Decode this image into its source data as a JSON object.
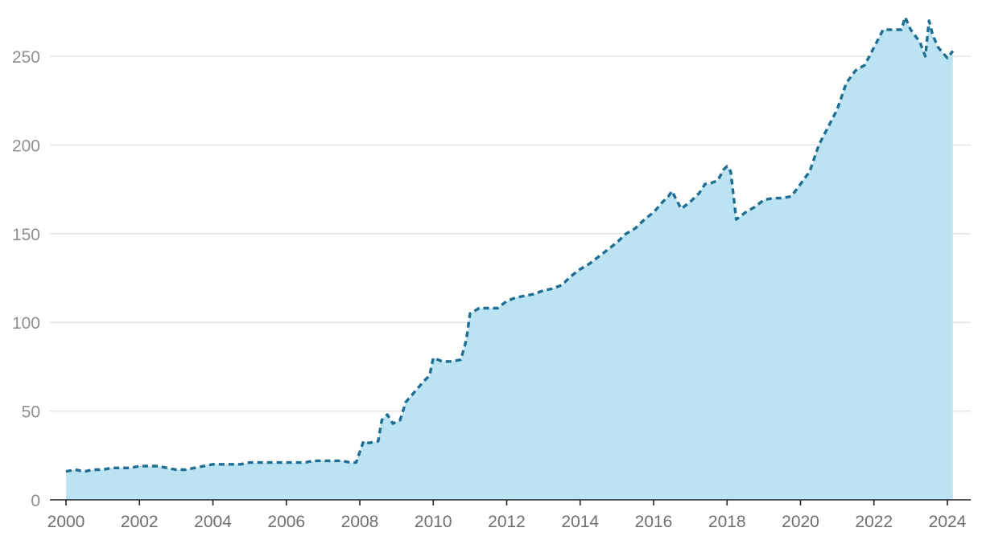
{
  "chart_data": {
    "type": "area",
    "title": "",
    "xlabel": "",
    "ylabel": "",
    "xlim": [
      2000,
      2024.3
    ],
    "ylim": [
      0,
      270
    ],
    "grid": true,
    "legend": "none",
    "colors": {
      "fill": "#bce3f1",
      "line": "#1e6d92"
    },
    "x_ticks": [
      {
        "value": 2000,
        "label": "2000"
      },
      {
        "value": 2002,
        "label": "2002"
      },
      {
        "value": 2004,
        "label": "2004"
      },
      {
        "value": 2006,
        "label": "2006"
      },
      {
        "value": 2008,
        "label": "2008"
      },
      {
        "value": 2010,
        "label": "2010"
      },
      {
        "value": 2012,
        "label": "2012"
      },
      {
        "value": 2014,
        "label": "2014"
      },
      {
        "value": 2016,
        "label": "2016"
      },
      {
        "value": 2018,
        "label": "2018"
      },
      {
        "value": 2020,
        "label": "2020"
      },
      {
        "value": 2022,
        "label": "2022"
      },
      {
        "value": 2024,
        "label": "2024"
      }
    ],
    "y_ticks": [
      {
        "value": 0,
        "label": "0"
      },
      {
        "value": 50,
        "label": "50"
      },
      {
        "value": 100,
        "label": "100"
      },
      {
        "value": 150,
        "label": "150"
      },
      {
        "value": 200,
        "label": "200"
      },
      {
        "value": 250,
        "label": "250"
      }
    ],
    "series": [
      {
        "x": [
          2000.0,
          2000.25,
          2000.5,
          2000.75,
          2001.0,
          2001.25,
          2001.5,
          2001.75,
          2002.0,
          2002.25,
          2002.5,
          2002.75,
          2003.0,
          2003.25,
          2003.5,
          2003.75,
          2004.0,
          2004.25,
          2004.5,
          2004.75,
          2005.0,
          2005.25,
          2005.5,
          2005.75,
          2006.0,
          2006.25,
          2006.5,
          2006.75,
          2007.0,
          2007.25,
          2007.5,
          2007.75,
          2007.9,
          2008.1,
          2008.25,
          2008.5,
          2008.6,
          2008.75,
          2008.9,
          2009.1,
          2009.25,
          2009.5,
          2009.75,
          2009.9,
          2010.0,
          2010.25,
          2010.5,
          2010.75,
          2010.9,
          2011.0,
          2011.25,
          2011.5,
          2011.75,
          2012.0,
          2012.25,
          2012.5,
          2012.75,
          2013.0,
          2013.25,
          2013.5,
          2013.75,
          2014.0,
          2014.25,
          2014.5,
          2014.75,
          2015.0,
          2015.25,
          2015.5,
          2015.75,
          2016.0,
          2016.25,
          2016.4,
          2016.5,
          2016.75,
          2017.0,
          2017.25,
          2017.4,
          2017.5,
          2017.75,
          2017.9,
          2018.0,
          2018.1,
          2018.25,
          2018.5,
          2018.75,
          2019.0,
          2019.25,
          2019.5,
          2019.75,
          2020.0,
          2020.25,
          2020.5,
          2020.75,
          2021.0,
          2021.25,
          2021.5,
          2021.75,
          2022.0,
          2022.25,
          2022.5,
          2022.75,
          2022.85,
          2023.0,
          2023.25,
          2023.4,
          2023.5,
          2023.6,
          2023.75,
          2024.0,
          2024.15
        ],
        "values": [
          16,
          17,
          16,
          17,
          17,
          18,
          18,
          18,
          19,
          19,
          19,
          18,
          17,
          17,
          18,
          19,
          20,
          20,
          20,
          20,
          21,
          21,
          21,
          21,
          21,
          21,
          21,
          22,
          22,
          22,
          22,
          21,
          21,
          33,
          32,
          33,
          45,
          48,
          43,
          45,
          55,
          61,
          67,
          70,
          80,
          78,
          78,
          79,
          90,
          105,
          108,
          108,
          108,
          112,
          114,
          115,
          116,
          118,
          119,
          121,
          126,
          130,
          133,
          137,
          141,
          145,
          150,
          153,
          158,
          162,
          168,
          171,
          174,
          164,
          168,
          173,
          178,
          178,
          180,
          186,
          188,
          185,
          158,
          162,
          165,
          169,
          170,
          170,
          171,
          178,
          185,
          200,
          210,
          220,
          235,
          242,
          245,
          255,
          265,
          265,
          265,
          272,
          265,
          258,
          250,
          270,
          262,
          255,
          249,
          253
        ]
      }
    ]
  }
}
